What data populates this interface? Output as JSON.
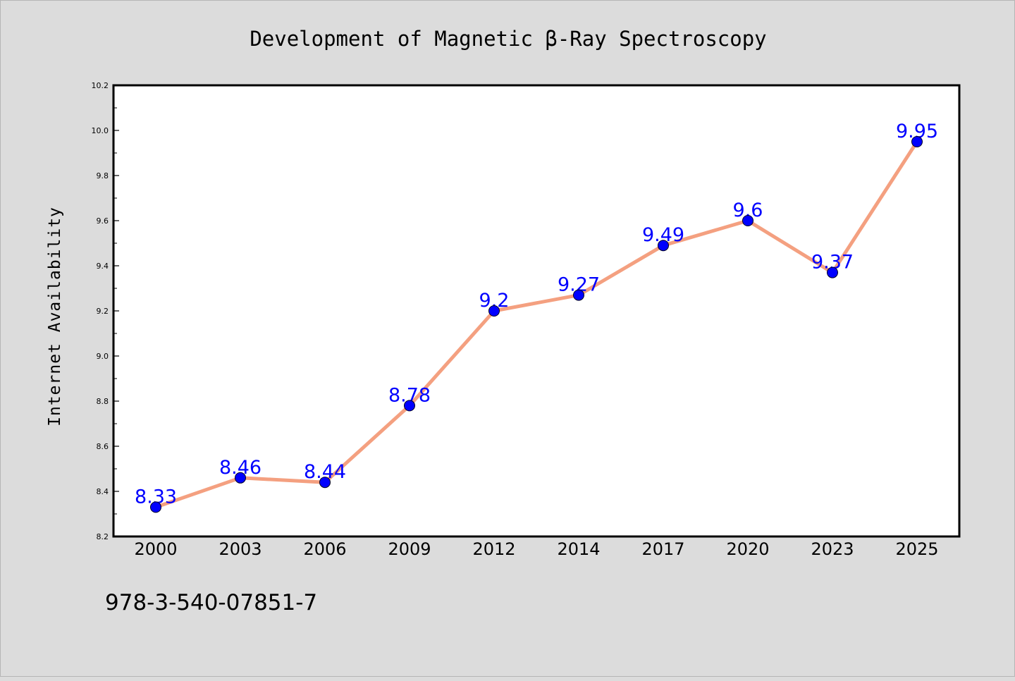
{
  "chart_data": {
    "type": "line",
    "title": "Development of Magnetic β-Ray Spectroscopy",
    "xlabel": "",
    "ylabel": "Internet Availability",
    "categories": [
      "2000",
      "2003",
      "2006",
      "2009",
      "2012",
      "2014",
      "2017",
      "2020",
      "2023",
      "2025"
    ],
    "series": [
      {
        "values": [
          8.33,
          8.46,
          8.44,
          8.78,
          9.2,
          9.27,
          9.49,
          9.6,
          9.37,
          9.95
        ],
        "line_color": "#f4a080",
        "marker_color": "#0000ff",
        "label_color": "#0000ff"
      }
    ],
    "data_labels": [
      "8.33",
      "8.46",
      "8.44",
      "8.78",
      "9.2",
      "9.27",
      "9.49",
      "9.6",
      "9.37",
      "9.95"
    ],
    "ylim": [
      8.2,
      10.2
    ],
    "yticks": [
      "8.2",
      "8.4",
      "8.6",
      "8.8",
      "9.0",
      "9.2",
      "9.4",
      "9.6",
      "9.8",
      "10.0",
      "10.2"
    ],
    "grid": false,
    "legend": "none",
    "background_color": "#dcdcdc",
    "plot_background_color": "#ffffff"
  },
  "footer": {
    "isbn": "978-3-540-07851-7"
  }
}
